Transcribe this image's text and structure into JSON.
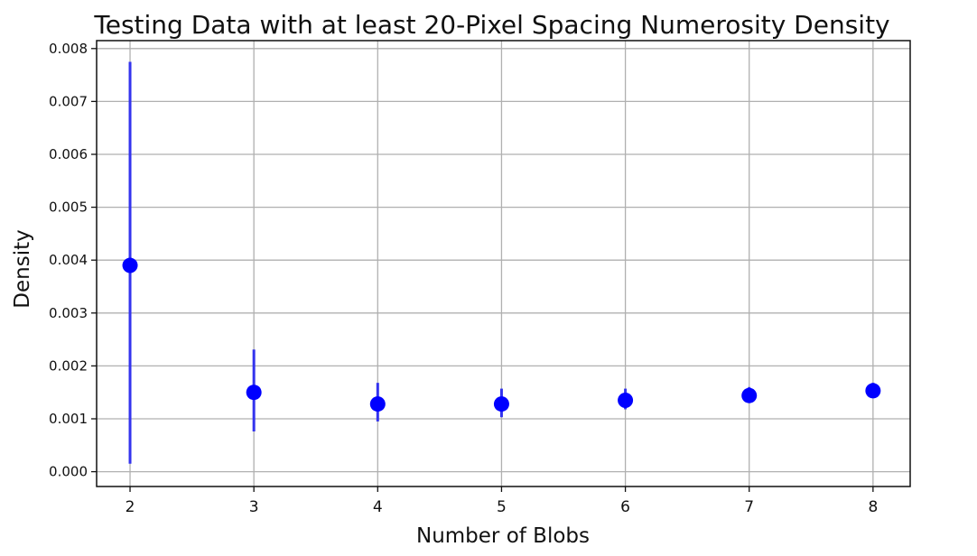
{
  "chart_data": {
    "type": "scatter",
    "title": "Testing Data with at least 20-Pixel Spacing Numerosity Density",
    "xlabel": "Number of Blobs",
    "ylabel": "Density",
    "x": [
      2,
      3,
      4,
      5,
      6,
      7,
      8
    ],
    "x_ticks": [
      "2",
      "3",
      "4",
      "5",
      "6",
      "7",
      "8"
    ],
    "y_ticks": [
      "0.000",
      "0.001",
      "0.002",
      "0.003",
      "0.004",
      "0.005",
      "0.006",
      "0.007",
      "0.008"
    ],
    "y_tick_values": [
      0,
      0.001,
      0.002,
      0.003,
      0.004,
      0.005,
      0.006,
      0.007,
      0.008
    ],
    "xlim": [
      1.73,
      8.3
    ],
    "ylim": [
      -0.00028,
      0.00815
    ],
    "grid": true,
    "series": [
      {
        "values": [
          0.0039,
          0.0015,
          0.00128,
          0.00128,
          0.00135,
          0.00144,
          0.00153
        ],
        "error_low": [
          0.00015,
          0.00076,
          0.00095,
          0.00103,
          0.00118,
          0.00131,
          0.00141
        ],
        "error_high": [
          0.00775,
          0.00231,
          0.00168,
          0.00157,
          0.00157,
          0.0016,
          0.00168
        ],
        "color": "#0000ff",
        "error_color": "#3333ee"
      }
    ]
  }
}
